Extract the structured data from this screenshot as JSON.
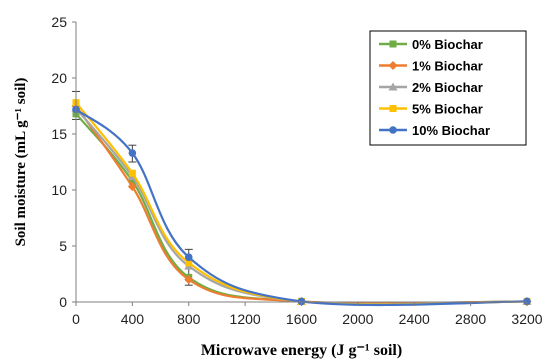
{
  "chart_data": {
    "type": "line",
    "xlabel": "Microwave energy (J g⁻¹ soil)",
    "ylabel": "Soil moisture (mL g⁻¹ soil)",
    "x_ticks": [
      "0",
      "400",
      "800",
      "1200",
      "1600",
      "2000",
      "2400",
      "2800",
      "3200"
    ],
    "y_ticks": [
      "0",
      "5",
      "10",
      "15",
      "20",
      "25"
    ],
    "xlim": [
      0,
      3200
    ],
    "ylim": [
      0,
      25
    ],
    "grid": false,
    "legend_position": "top-right",
    "smooth": true,
    "x": [
      0,
      400,
      800,
      1600,
      3200
    ],
    "series": [
      {
        "name": "0% Biochar",
        "color": "#70ad47",
        "marker": "square",
        "values": [
          16.8,
          10.8,
          2.2,
          0.05,
          0.05
        ]
      },
      {
        "name": "1% Biochar",
        "color": "#ed7d31",
        "marker": "diamond",
        "values": [
          17.5,
          10.3,
          2.0,
          0.05,
          0.05
        ]
      },
      {
        "name": "2% Biochar",
        "color": "#a5a5a5",
        "marker": "triangle",
        "values": [
          17.3,
          11.2,
          3.2,
          0.05,
          0.05
        ]
      },
      {
        "name": "5% Biochar",
        "color": "#ffc000",
        "marker": "square",
        "values": [
          17.8,
          11.5,
          3.5,
          0.05,
          0.05
        ]
      },
      {
        "name": "10% Biochar",
        "color": "#4472c4",
        "marker": "circle",
        "values": [
          17.2,
          13.3,
          4.0,
          0.05,
          0.05
        ]
      }
    ],
    "error_bars": {
      "series": "10% Biochar",
      "x": [
        0,
        400,
        800
      ],
      "low": [
        16.3,
        12.5,
        1.5
      ],
      "high": [
        18.8,
        14.0,
        4.7
      ]
    }
  }
}
